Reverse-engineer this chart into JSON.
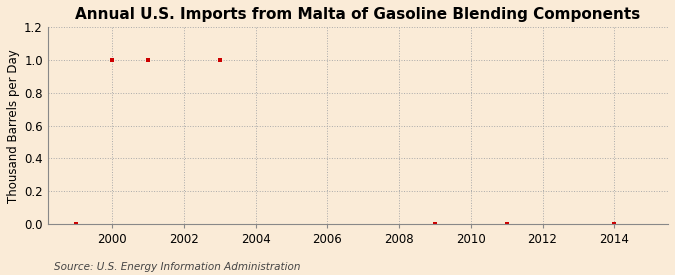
{
  "title": "Annual U.S. Imports from Malta of Gasoline Blending Components",
  "ylabel": "Thousand Barrels per Day",
  "source_text": "Source: U.S. Energy Information Administration",
  "background_color": "#faebd7",
  "data_points": {
    "years": [
      1999,
      2000,
      2001,
      2003,
      2009,
      2011,
      2014
    ],
    "values": [
      0.0,
      1.0,
      1.0,
      1.0,
      0.0,
      0.0,
      0.0
    ]
  },
  "marker_color": "#cc0000",
  "marker_size": 3.5,
  "marker_style": "s",
  "xlim": [
    1998.2,
    2015.5
  ],
  "ylim": [
    0.0,
    1.2
  ],
  "yticks": [
    0.0,
    0.2,
    0.4,
    0.6,
    0.8,
    1.0,
    1.2
  ],
  "xticks": [
    2000,
    2002,
    2004,
    2006,
    2008,
    2010,
    2012,
    2014
  ],
  "grid_color": "#aaaaaa",
  "grid_style": ":",
  "title_fontsize": 11,
  "label_fontsize": 8.5,
  "tick_fontsize": 8.5,
  "source_fontsize": 7.5
}
